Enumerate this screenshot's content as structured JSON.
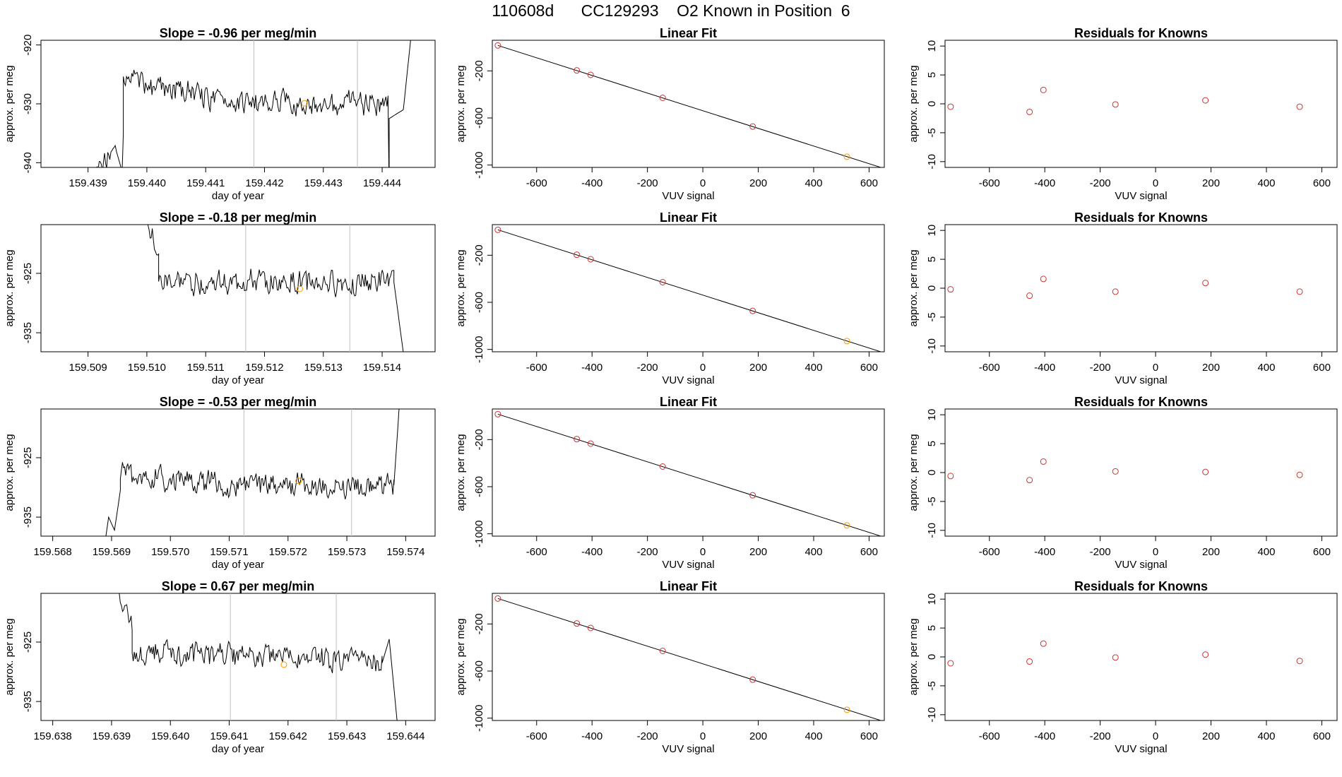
{
  "page": {
    "title": "110608d      CC129293    O2 Known in Position  6"
  },
  "colors": {
    "ink": "#000000",
    "marker_line": "#bebebe",
    "point": "#cd3333",
    "highlight": "#ff9900"
  },
  "labels": {
    "time_xlabel": "day of year",
    "time_ylabel": "approx. per meg",
    "fit_title": "Linear Fit",
    "fit_xlabel": "VUV signal",
    "fit_ylabel": "approx. per meg",
    "resid_title": "Residuals for Knowns",
    "resid_xlabel": "VUV signal",
    "resid_ylabel": "approx. per meg"
  },
  "chart_data": [
    {
      "type": "line",
      "title": "Slope =  -0.96  per meg/min",
      "xlabel": "day of year",
      "ylabel": "approx. per meg",
      "xlim": [
        159.4382,
        159.4449
      ],
      "ylim": [
        -940.8,
        -919.2
      ],
      "xticks": [
        159.439,
        159.44,
        159.441,
        159.442,
        159.443,
        159.444
      ],
      "xtick_labels": [
        "159.439",
        "159.440",
        "159.441",
        "159.442",
        "159.443",
        "159.444"
      ],
      "yticks": [
        -920,
        -930,
        -940
      ],
      "ytick_labels": [
        "-920",
        "-930",
        "-940"
      ],
      "vlines": [
        159.44182,
        159.44358
      ],
      "highlight": {
        "x": 159.44268,
        "y": -929.9
      },
      "segments": [
        {
          "x0": 159.4389,
          "x1": 159.43948,
          "y0": -944.0,
          "y1": -938.0,
          "warm": 0
        },
        {
          "x0": 159.43948,
          "x1": 159.43958,
          "y0": -938.0,
          "y1": -941.5,
          "warm": 0
        },
        {
          "x0": 159.43958,
          "x1": 159.4396,
          "y0": -941.5,
          "y1": -935.0,
          "warm": 0
        },
        {
          "x0": 159.4396,
          "x1": 159.4441,
          "y0": -931.2,
          "y1": -929.7,
          "warm": 6
        },
        {
          "x0": 159.4441,
          "x1": 159.44412,
          "y0": -929.7,
          "y1": -945.0,
          "warm": 0
        },
        {
          "x0": 159.44412,
          "x1": 159.44436,
          "y0": -932.5,
          "y1": -931.0,
          "warm": 0
        },
        {
          "x0": 159.44436,
          "x1": 159.44458,
          "y0": -931.0,
          "y1": -910.0,
          "warm": 0
        }
      ]
    },
    {
      "type": "scatter",
      "title": "Linear Fit",
      "xlabel": "VUV signal",
      "ylabel": "approx. per meg",
      "xlim": [
        -760,
        655
      ],
      "ylim": [
        -1020,
        60
      ],
      "xticks": [
        -600,
        -400,
        -200,
        0,
        200,
        400,
        600
      ],
      "xtick_labels": [
        "-600",
        "-400",
        "-200",
        "0",
        "200",
        "400",
        "600"
      ],
      "yticks": [
        -200,
        -600,
        -1000
      ],
      "ytick_labels": [
        "-200",
        "-600",
        "-1000"
      ],
      "line": {
        "x": [
          -740,
          645
        ],
        "y": [
          16,
          -1022
        ]
      },
      "points": {
        "x": [
          -740,
          -455,
          -405,
          -145,
          180,
          520
        ],
        "y": [
          16,
          -196,
          -234,
          -429,
          -673,
          -929
        ]
      },
      "highlight_index": 5
    },
    {
      "type": "scatter",
      "title": "Residuals for Knowns",
      "xlabel": "VUV signal",
      "ylabel": "approx. per meg",
      "xlim": [
        -760,
        655
      ],
      "ylim": [
        -11,
        11
      ],
      "xticks": [
        -600,
        -400,
        -200,
        0,
        200,
        400,
        600
      ],
      "xtick_labels": [
        "-600",
        "-400",
        "-200",
        "0",
        "200",
        "400",
        "600"
      ],
      "yticks": [
        10,
        5,
        0,
        -5,
        -10
      ],
      "ytick_labels": [
        "10",
        "5",
        "0",
        "-5",
        "-10"
      ],
      "points": {
        "x": [
          -740,
          -455,
          -405,
          -145,
          180,
          520
        ],
        "y": [
          -0.5,
          -1.4,
          2.4,
          -0.1,
          0.6,
          -0.5
        ]
      }
    },
    {
      "type": "line",
      "title": "Slope =  -0.18  per meg/min",
      "xlabel": "day of year",
      "ylabel": "approx. per meg",
      "xlim": [
        159.5082,
        159.5149
      ],
      "ylim": [
        -938.2,
        -916.8
      ],
      "xticks": [
        159.509,
        159.51,
        159.511,
        159.512,
        159.513,
        159.514
      ],
      "xtick_labels": [
        "159.509",
        "159.510",
        "159.511",
        "159.512",
        "159.513",
        "159.514"
      ],
      "yticks": [
        -925,
        -935
      ],
      "ytick_labels": [
        "-925",
        "-935"
      ],
      "vlines": [
        159.51168,
        159.51345
      ],
      "highlight": {
        "x": 159.5126,
        "y": -927.6
      },
      "segments": [
        {
          "x0": 159.50975,
          "x1": 159.5102,
          "y0": -908.0,
          "y1": -922.5,
          "warm": 2
        },
        {
          "x0": 159.5102,
          "x1": 159.5142,
          "y0": -926.5,
          "y1": -926.5,
          "warm": 0
        },
        {
          "x0": 159.5142,
          "x1": 159.51445,
          "y0": -926.5,
          "y1": -945.0,
          "warm": 0
        }
      ]
    },
    {
      "type": "scatter",
      "title": "Linear Fit",
      "xlabel": "VUV signal",
      "ylabel": "approx. per meg",
      "xlim": [
        -760,
        655
      ],
      "ylim": [
        -1020,
        60
      ],
      "xticks": [
        -600,
        -400,
        -200,
        0,
        200,
        400,
        600
      ],
      "xtick_labels": [
        "-600",
        "-400",
        "-200",
        "0",
        "200",
        "400",
        "600"
      ],
      "yticks": [
        -200,
        -600,
        -1000
      ],
      "ytick_labels": [
        "-200",
        "-600",
        "-1000"
      ],
      "line": {
        "x": [
          -740,
          645
        ],
        "y": [
          16,
          -1022
        ]
      },
      "points": {
        "x": [
          -740,
          -455,
          -405,
          -145,
          180,
          520
        ],
        "y": [
          16,
          -196,
          -234,
          -429,
          -673,
          -929
        ]
      },
      "highlight_index": 5
    },
    {
      "type": "scatter",
      "title": "Residuals for Knowns",
      "xlabel": "VUV signal",
      "ylabel": "approx. per meg",
      "xlim": [
        -760,
        655
      ],
      "ylim": [
        -11,
        11
      ],
      "xticks": [
        -600,
        -400,
        -200,
        0,
        200,
        400,
        600
      ],
      "xtick_labels": [
        "-600",
        "-400",
        "-200",
        "0",
        "200",
        "400",
        "600"
      ],
      "yticks": [
        10,
        5,
        0,
        -5,
        -10
      ],
      "ytick_labels": [
        "10",
        "5",
        "0",
        "-5",
        "-10"
      ],
      "points": {
        "x": [
          -740,
          -455,
          -405,
          -145,
          180,
          520
        ],
        "y": [
          -0.2,
          -1.3,
          1.6,
          -0.6,
          0.9,
          -0.6
        ]
      }
    },
    {
      "type": "line",
      "title": "Slope =  -0.53  per meg/min",
      "xlabel": "day of year",
      "ylabel": "approx. per meg",
      "xlim": [
        159.5678,
        159.5745
      ],
      "ylim": [
        -938.2,
        -916.8
      ],
      "xticks": [
        159.568,
        159.569,
        159.57,
        159.571,
        159.572,
        159.573,
        159.574
      ],
      "xtick_labels": [
        "159.568",
        "159.569",
        "159.570",
        "159.571",
        "159.572",
        "159.573",
        "159.574"
      ],
      "yticks": [
        -925,
        -935
      ],
      "ytick_labels": [
        "-925",
        "-935"
      ],
      "vlines": [
        159.57125,
        159.57308
      ],
      "highlight": {
        "x": 159.57218,
        "y": -928.9
      },
      "segments": [
        {
          "x0": 159.56885,
          "x1": 159.56895,
          "y0": -942.0,
          "y1": -935.0,
          "warm": 0
        },
        {
          "x0": 159.56895,
          "x1": 159.56905,
          "y0": -935.0,
          "y1": -937.2,
          "warm": 0
        },
        {
          "x0": 159.56905,
          "x1": 159.56915,
          "y0": -937.2,
          "y1": -930.5,
          "warm": 0
        },
        {
          "x0": 159.56915,
          "x1": 159.5738,
          "y0": -930.5,
          "y1": -929.6,
          "warm": 3
        },
        {
          "x0": 159.5738,
          "x1": 159.5739,
          "y0": -929.6,
          "y1": -915.0,
          "warm": 0
        }
      ]
    },
    {
      "type": "scatter",
      "title": "Linear Fit",
      "xlabel": "VUV signal",
      "ylabel": "approx. per meg",
      "xlim": [
        -760,
        655
      ],
      "ylim": [
        -1020,
        60
      ],
      "xticks": [
        -600,
        -400,
        -200,
        0,
        200,
        400,
        600
      ],
      "xtick_labels": [
        "-600",
        "-400",
        "-200",
        "0",
        "200",
        "400",
        "600"
      ],
      "yticks": [
        -200,
        -600,
        -1000
      ],
      "ytick_labels": [
        "-200",
        "-600",
        "-1000"
      ],
      "line": {
        "x": [
          -740,
          645
        ],
        "y": [
          16,
          -1022
        ]
      },
      "points": {
        "x": [
          -740,
          -455,
          -405,
          -145,
          180,
          520
        ],
        "y": [
          16,
          -196,
          -234,
          -429,
          -673,
          -929
        ]
      },
      "highlight_index": 5
    },
    {
      "type": "scatter",
      "title": "Residuals for Knowns",
      "xlabel": "VUV signal",
      "ylabel": "approx. per meg",
      "xlim": [
        -760,
        655
      ],
      "ylim": [
        -11,
        11
      ],
      "xticks": [
        -600,
        -400,
        -200,
        0,
        200,
        400,
        600
      ],
      "xtick_labels": [
        "-600",
        "-400",
        "-200",
        "0",
        "200",
        "400",
        "600"
      ],
      "yticks": [
        10,
        5,
        0,
        -5,
        -10
      ],
      "ytick_labels": [
        "10",
        "5",
        "0",
        "-5",
        "-10"
      ],
      "points": {
        "x": [
          -740,
          -455,
          -405,
          -145,
          180,
          520
        ],
        "y": [
          -0.6,
          -1.3,
          1.9,
          0.2,
          0.1,
          -0.4
        ]
      }
    },
    {
      "type": "line",
      "title": "Slope =  0.67  per meg/min",
      "xlabel": "day of year",
      "ylabel": "approx. per meg",
      "xlim": [
        159.6378,
        159.6445
      ],
      "ylim": [
        -938.2,
        -916.8
      ],
      "xticks": [
        159.638,
        159.639,
        159.64,
        159.641,
        159.642,
        159.643,
        159.644
      ],
      "xtick_labels": [
        "159.638",
        "159.639",
        "159.640",
        "159.641",
        "159.642",
        "159.643",
        "159.644"
      ],
      "yticks": [
        -925,
        -935
      ],
      "ytick_labels": [
        "-925",
        "-935"
      ],
      "vlines": [
        159.64102,
        159.64282
      ],
      "highlight": {
        "x": 159.64193,
        "y": -928.8
      },
      "segments": [
        {
          "x0": 159.63895,
          "x1": 159.63935,
          "y0": -913.0,
          "y1": -922.5,
          "warm": 2
        },
        {
          "x0": 159.63935,
          "x1": 159.6436,
          "y0": -926.5,
          "y1": -928.5,
          "warm": 0
        },
        {
          "x0": 159.6436,
          "x1": 159.64372,
          "y0": -928.5,
          "y1": -924.5,
          "warm": 0
        },
        {
          "x0": 159.64372,
          "x1": 159.64392,
          "y0": -924.5,
          "y1": -945.0,
          "warm": 0
        }
      ]
    },
    {
      "type": "scatter",
      "title": "Linear Fit",
      "xlabel": "VUV signal",
      "ylabel": "approx. per meg",
      "xlim": [
        -760,
        655
      ],
      "ylim": [
        -1020,
        60
      ],
      "xticks": [
        -600,
        -400,
        -200,
        0,
        200,
        400,
        600
      ],
      "xtick_labels": [
        "-600",
        "-400",
        "-200",
        "0",
        "200",
        "400",
        "600"
      ],
      "yticks": [
        -200,
        -600,
        -1000
      ],
      "ytick_labels": [
        "-200",
        "-600",
        "-1000"
      ],
      "line": {
        "x": [
          -740,
          645
        ],
        "y": [
          16,
          -1022
        ]
      },
      "points": {
        "x": [
          -740,
          -455,
          -405,
          -145,
          180,
          520
        ],
        "y": [
          16,
          -196,
          -234,
          -429,
          -673,
          -929
        ]
      },
      "highlight_index": 5
    },
    {
      "type": "scatter",
      "title": "Residuals for Knowns",
      "xlabel": "VUV signal",
      "ylabel": "approx. per meg",
      "xlim": [
        -760,
        655
      ],
      "ylim": [
        -11,
        11
      ],
      "xticks": [
        -600,
        -400,
        -200,
        0,
        200,
        400,
        600
      ],
      "xtick_labels": [
        "-600",
        "-400",
        "-200",
        "0",
        "200",
        "400",
        "600"
      ],
      "yticks": [
        10,
        5,
        0,
        -5,
        -10
      ],
      "ytick_labels": [
        "10",
        "5",
        "0",
        "-5",
        "-10"
      ],
      "points": {
        "x": [
          -740,
          -455,
          -405,
          -145,
          180,
          520
        ],
        "y": [
          -1.1,
          -0.8,
          2.3,
          -0.1,
          0.4,
          -0.7
        ]
      }
    }
  ]
}
